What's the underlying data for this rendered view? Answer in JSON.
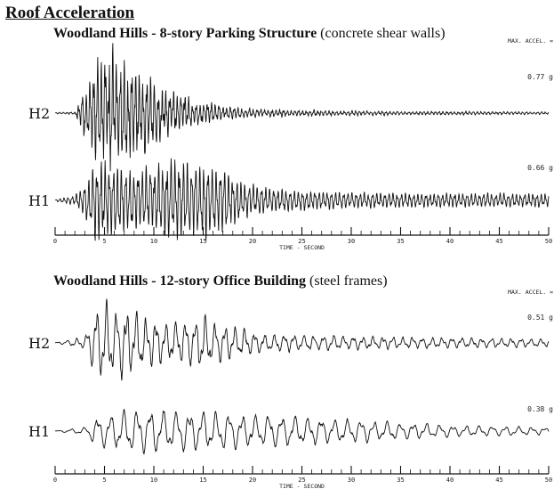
{
  "title": "Roof Acceleration",
  "chart_data": [
    {
      "type": "line",
      "title_bold": "Woodland Hills - 8-story Parking Structure",
      "title_rest": " (concrete shear walls)",
      "max_accel_label": "MAX. ACCEL. =",
      "xlabel": "TIME - SECOND",
      "xlim": [
        0,
        50
      ],
      "xticks": [
        0,
        5,
        10,
        15,
        20,
        25,
        30,
        35,
        40,
        45,
        50
      ],
      "series": [
        {
          "name": "H2",
          "max_accel": "0.77 g",
          "envelope": [
            [
              0,
              0.01
            ],
            [
              2,
              0.02
            ],
            [
              3,
              0.45
            ],
            [
              4,
              0.8
            ],
            [
              5,
              1.0
            ],
            [
              6,
              0.95
            ],
            [
              7,
              0.85
            ],
            [
              8,
              0.75
            ],
            [
              9,
              0.65
            ],
            [
              10,
              0.55
            ],
            [
              11,
              0.45
            ],
            [
              12,
              0.38
            ],
            [
              13,
              0.3
            ],
            [
              14,
              0.22
            ],
            [
              15,
              0.18
            ],
            [
              16,
              0.16
            ],
            [
              17,
              0.12
            ],
            [
              18,
              0.1
            ],
            [
              20,
              0.07
            ],
            [
              25,
              0.05
            ],
            [
              30,
              0.04
            ],
            [
              35,
              0.03
            ],
            [
              40,
              0.03
            ],
            [
              45,
              0.025
            ],
            [
              50,
              0.02
            ]
          ],
          "freq": [
            [
              0,
              2.6
            ],
            [
              50,
              2.6
            ]
          ],
          "noise": 0.6
        },
        {
          "name": "H1",
          "max_accel": "0.66 g",
          "envelope": [
            [
              0,
              0.02
            ],
            [
              2,
              0.1
            ],
            [
              3,
              0.35
            ],
            [
              4,
              0.9
            ],
            [
              6,
              0.8
            ],
            [
              8,
              0.65
            ],
            [
              10,
              0.75
            ],
            [
              12,
              0.85
            ],
            [
              14,
              0.8
            ],
            [
              15,
              0.85
            ],
            [
              16,
              0.78
            ],
            [
              17,
              0.7
            ],
            [
              19,
              0.4
            ],
            [
              21,
              0.3
            ],
            [
              23,
              0.25
            ],
            [
              25,
              0.22
            ],
            [
              30,
              0.17
            ],
            [
              35,
              0.16
            ],
            [
              40,
              0.15
            ],
            [
              45,
              0.15
            ],
            [
              50,
              0.15
            ]
          ],
          "freq": [
            [
              0,
              2.4
            ],
            [
              50,
              2.4
            ]
          ],
          "noise": 0.35
        }
      ]
    },
    {
      "type": "line",
      "title_bold": "Woodland Hills - 12-story Office Building",
      "title_rest": " (steel frames)",
      "max_accel_label": "MAX. ACCEL. =",
      "xlabel": "TIME - SECOND",
      "xlim": [
        0,
        50
      ],
      "xticks": [
        0,
        5,
        10,
        15,
        20,
        25,
        30,
        35,
        40,
        45,
        50
      ],
      "series": [
        {
          "name": "H2",
          "max_accel": "0.51 g",
          "envelope": [
            [
              0,
              0.01
            ],
            [
              3,
              0.15
            ],
            [
              4,
              0.85
            ],
            [
              5,
              0.95
            ],
            [
              7,
              0.85
            ],
            [
              9,
              0.7
            ],
            [
              11,
              0.5
            ],
            [
              13,
              0.6
            ],
            [
              15,
              0.7
            ],
            [
              17,
              0.45
            ],
            [
              19,
              0.35
            ],
            [
              21,
              0.25
            ],
            [
              25,
              0.2
            ],
            [
              30,
              0.17
            ],
            [
              35,
              0.15
            ],
            [
              40,
              0.13
            ],
            [
              45,
              0.12
            ],
            [
              50,
              0.1
            ]
          ],
          "freq": [
            [
              0,
              1.0
            ],
            [
              50,
              1.0
            ]
          ],
          "noise": 0.35
        },
        {
          "name": "H1",
          "max_accel": "0.38 g",
          "envelope": [
            [
              0,
              0.01
            ],
            [
              3,
              0.15
            ],
            [
              4,
              0.55
            ],
            [
              5,
              0.7
            ],
            [
              7,
              0.8
            ],
            [
              9,
              0.9
            ],
            [
              11,
              0.85
            ],
            [
              13,
              0.8
            ],
            [
              15,
              0.85
            ],
            [
              17,
              0.75
            ],
            [
              19,
              0.7
            ],
            [
              21,
              0.65
            ],
            [
              25,
              0.6
            ],
            [
              28,
              0.5
            ],
            [
              31,
              0.45
            ],
            [
              35,
              0.35
            ],
            [
              40,
              0.25
            ],
            [
              45,
              0.2
            ],
            [
              50,
              0.15
            ]
          ],
          "freq": [
            [
              0,
              0.75
            ],
            [
              50,
              0.75
            ]
          ],
          "noise": 0.25
        }
      ]
    }
  ]
}
